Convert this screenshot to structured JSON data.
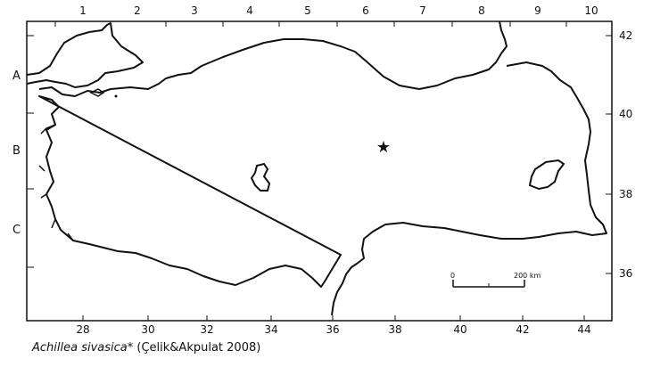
{
  "map": {
    "grid_columns": [
      "1",
      "2",
      "3",
      "4",
      "5",
      "6",
      "7",
      "8",
      "9",
      "10"
    ],
    "grid_rows": [
      "A",
      "B",
      "C"
    ],
    "longitude_labels": [
      "28",
      "30",
      "32",
      "34",
      "36",
      "38",
      "40",
      "42",
      "44"
    ],
    "latitude_labels": [
      "42",
      "40",
      "38",
      "36"
    ],
    "scale_bar": {
      "start_label": "0",
      "end_label": "200 km"
    },
    "marker": {
      "symbol": "★",
      "lon": 37.5,
      "lat": 39.3
    }
  },
  "caption": {
    "species": "Achillea sivasica*",
    "citation": " (Çelik&Akpulat 2008)"
  }
}
